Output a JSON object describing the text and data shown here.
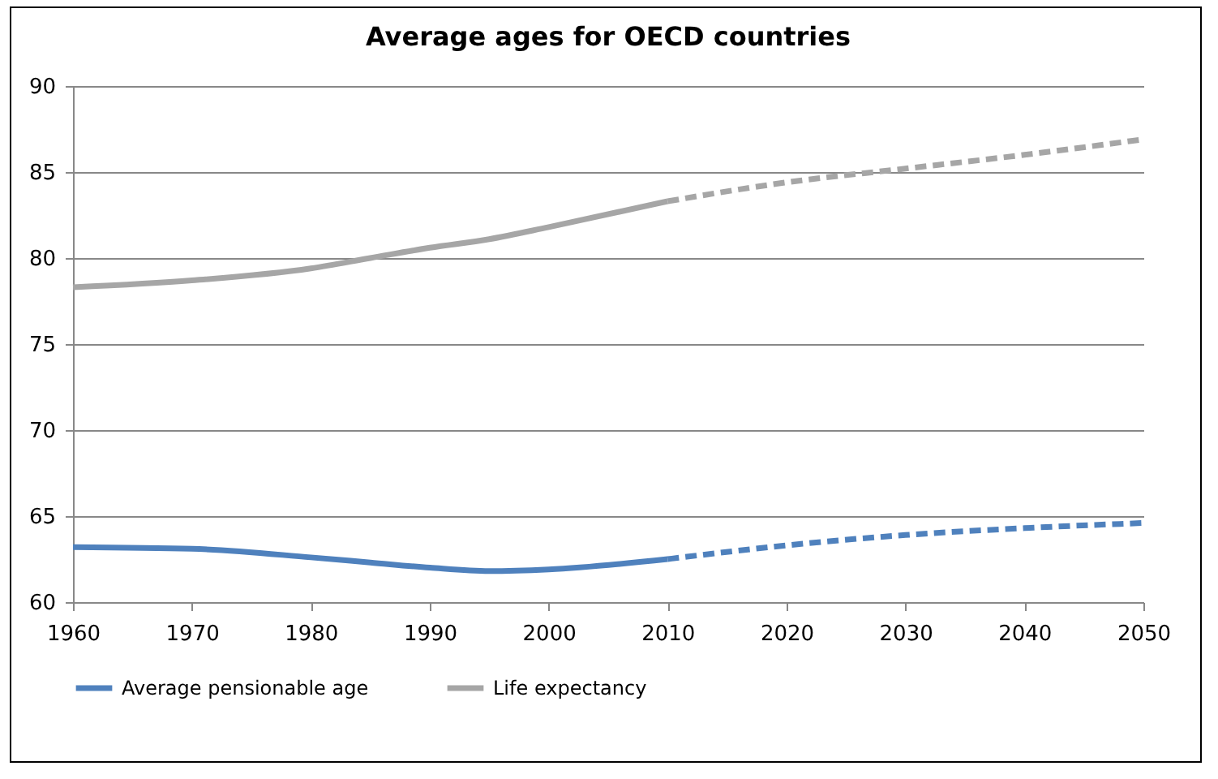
{
  "chart_data": {
    "type": "line",
    "title": "Average ages for OECD countries",
    "x": [
      1960,
      1970,
      1980,
      1985,
      1990,
      1995,
      2000,
      2010
    ],
    "series": [
      {
        "name": "Average pensionable age",
        "color": "#4f81bd",
        "line_style": "solid",
        "values": [
          63.2,
          63.1,
          62.6,
          62.3,
          62.0,
          61.8,
          61.9,
          62.5
        ]
      },
      {
        "name": "Life expectancy",
        "color": "#a6a6a6",
        "line_style": "solid",
        "values": [
          78.3,
          78.7,
          79.4,
          80.0,
          80.6,
          81.1,
          81.8,
          83.3
        ]
      },
      {
        "color": "#4f81bd",
        "line_style": "dashed",
        "x": [
          2010,
          2020,
          2030,
          2040,
          2050
        ],
        "values": [
          62.5,
          63.3,
          63.9,
          64.3,
          64.6
        ]
      },
      {
        "color": "#a6a6a6",
        "line_style": "dashed",
        "x": [
          2010,
          2020,
          2030,
          2040,
          2050
        ],
        "values": [
          83.3,
          84.4,
          85.2,
          86.0,
          86.9
        ]
      }
    ],
    "xlim": [
      1960,
      2050
    ],
    "xticks": [
      1960,
      1970,
      1980,
      1990,
      2000,
      2010,
      2020,
      2030,
      2040,
      2050
    ],
    "ylim": [
      60,
      90
    ],
    "yticks": [
      60,
      65,
      70,
      75,
      80,
      85,
      90
    ],
    "grid": "y",
    "legend": "bottom"
  }
}
